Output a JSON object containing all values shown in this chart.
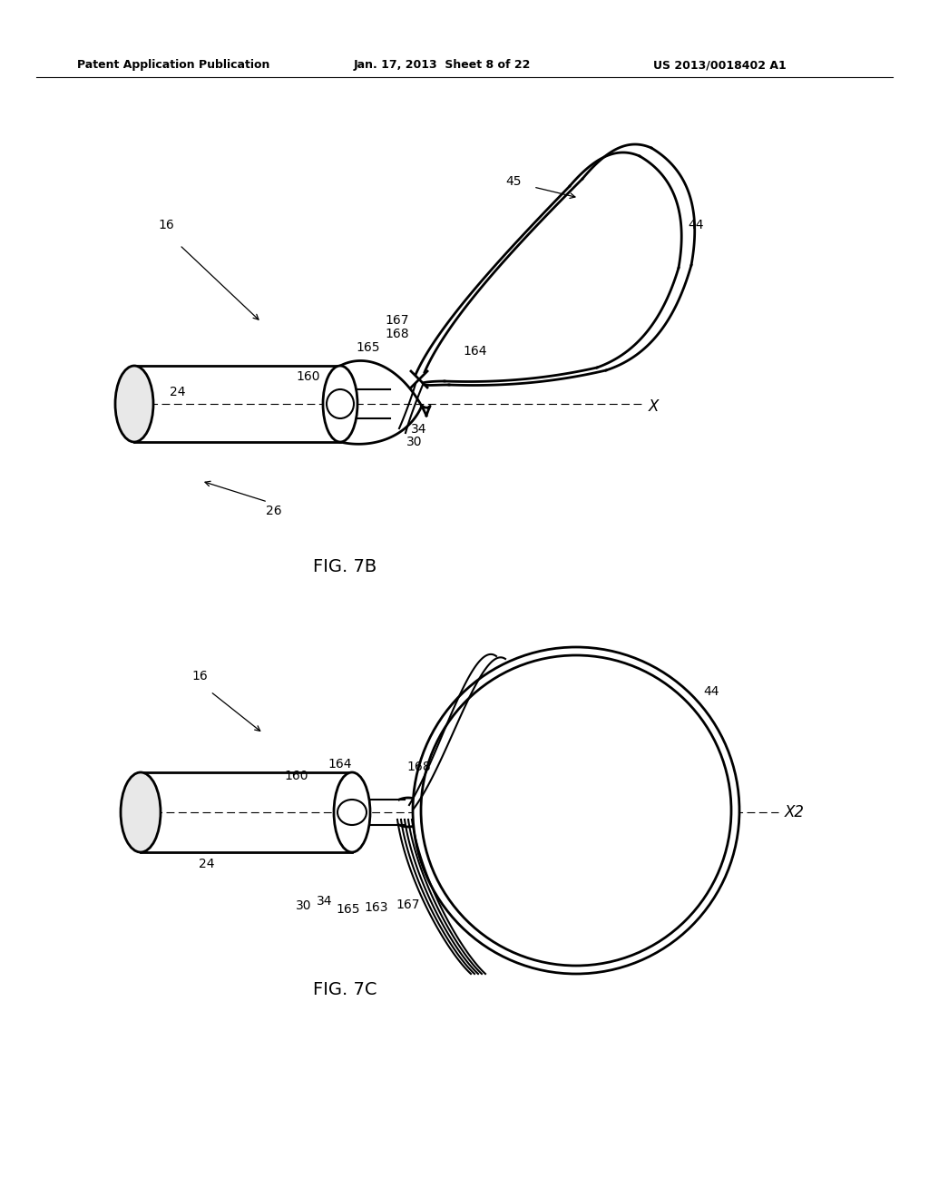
{
  "bg_color": "#ffffff",
  "header_left": "Patent Application Publication",
  "header_center": "Jan. 17, 2013  Sheet 8 of 22",
  "header_right": "US 2013/0018402 A1",
  "fig7b_label": "FIG. 7B",
  "fig7c_label": "FIG. 7C"
}
